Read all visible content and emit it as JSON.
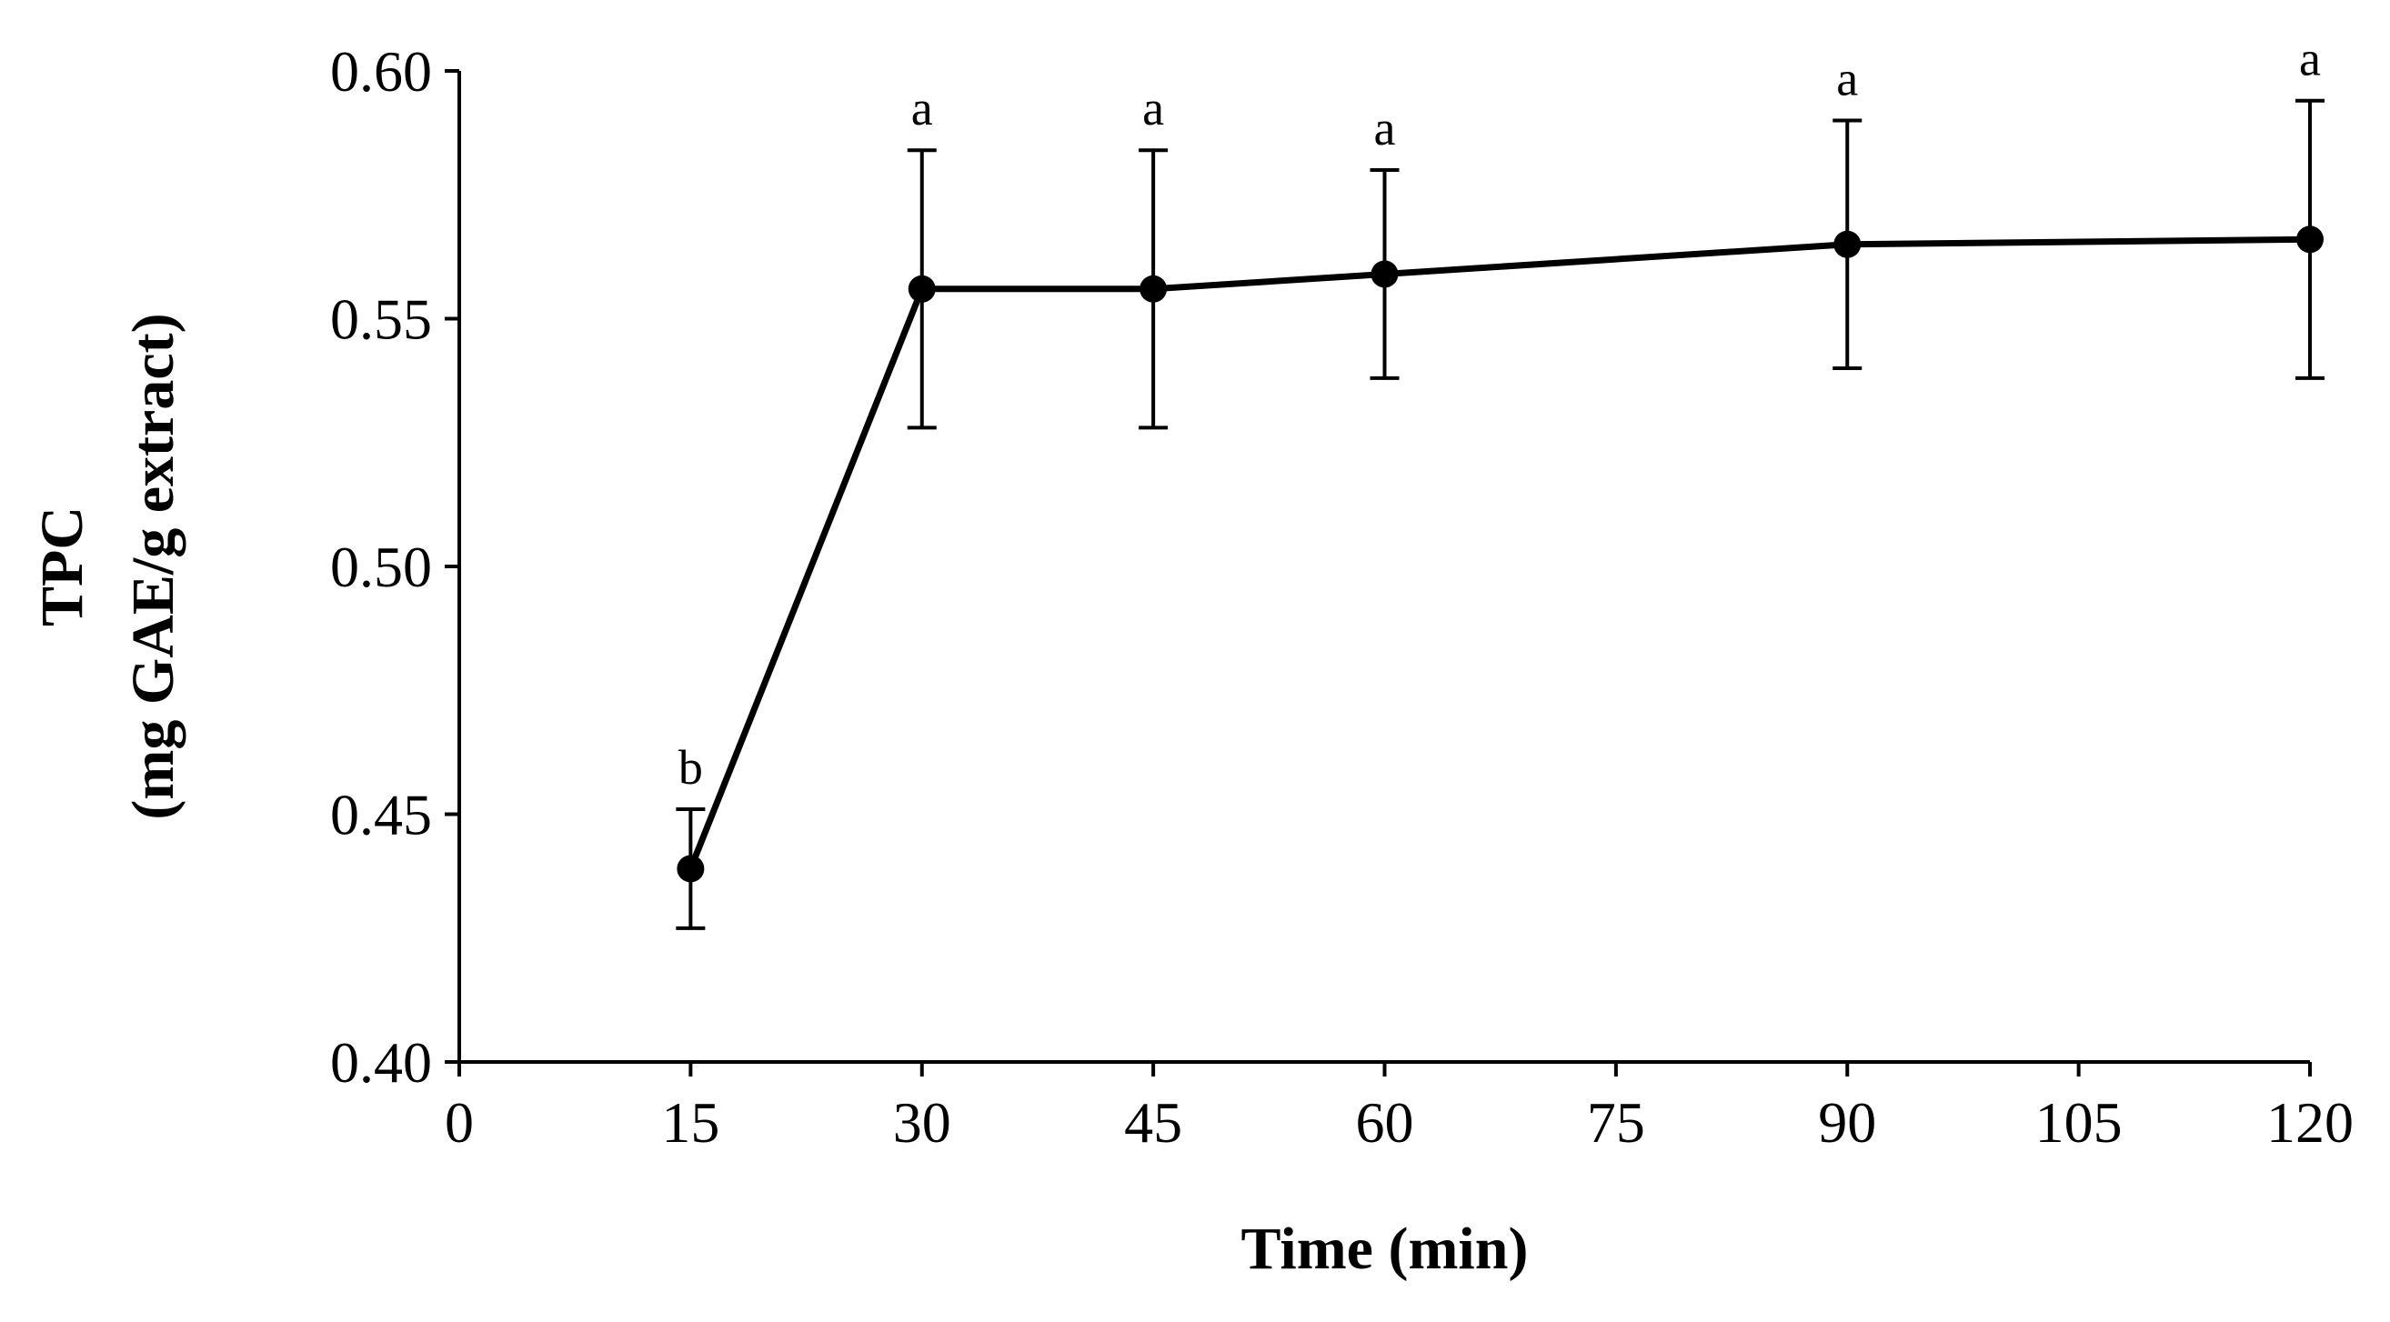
{
  "chart_data": {
    "type": "line",
    "title": "",
    "xlabel": "Time (min)",
    "ylabel_lines": [
      "TPC",
      "(mg GAE/g extract)"
    ],
    "xlim": [
      0,
      120
    ],
    "ylim": [
      0.4,
      0.6
    ],
    "x_ticks": [
      "0",
      "15",
      "30",
      "45",
      "60",
      "75",
      "90",
      "105",
      "120"
    ],
    "y_ticks": [
      "0.40",
      "0.45",
      "0.50",
      "0.55",
      "0.60"
    ],
    "grid": false,
    "legend": "none",
    "series": [
      {
        "name": "TPC",
        "color": "#000000",
        "x": [
          15,
          30,
          45,
          60,
          90,
          120
        ],
        "values": [
          0.439,
          0.556,
          0.556,
          0.559,
          0.565,
          0.566
        ],
        "error": [
          0.012,
          0.028,
          0.028,
          0.021,
          0.025,
          0.028
        ],
        "significance_labels": [
          "b",
          "a",
          "a",
          "a",
          "a",
          "a"
        ]
      }
    ]
  }
}
